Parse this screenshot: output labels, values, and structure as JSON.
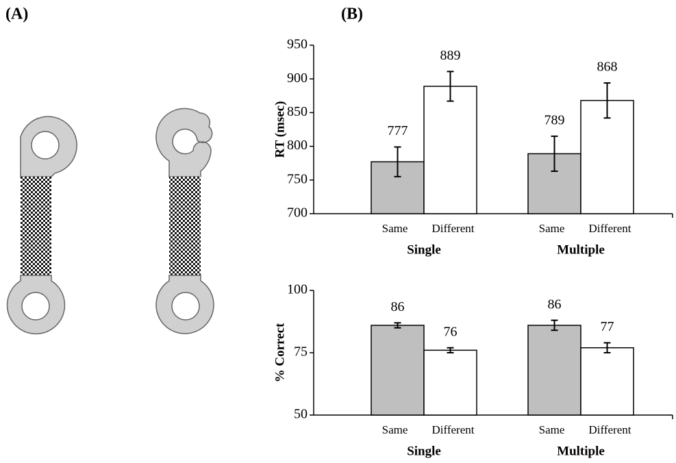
{
  "labels": [
    "(A)",
    "(B)"
  ],
  "chart_data": [
    {
      "type": "bar",
      "ylabel": "RT (msec)",
      "categories": [
        "Single",
        "Multiple"
      ],
      "series": [
        {
          "name": "Same",
          "color": "#bfbfbf",
          "values": [
            777,
            789
          ],
          "errors": [
            22,
            26
          ]
        },
        {
          "name": "Different",
          "color": "#ffffff",
          "values": [
            889,
            868
          ],
          "errors": [
            22,
            26
          ]
        }
      ],
      "ylim": [
        700,
        950
      ],
      "yticks": [
        700,
        750,
        800,
        850,
        900,
        950
      ]
    },
    {
      "type": "bar",
      "ylabel": "% Correct",
      "categories": [
        "Single",
        "Multiple"
      ],
      "series": [
        {
          "name": "Same",
          "color": "#bfbfbf",
          "values": [
            86,
            86
          ],
          "errors": [
            1,
            2
          ]
        },
        {
          "name": "Different",
          "color": "#ffffff",
          "values": [
            76,
            77
          ],
          "errors": [
            1,
            2
          ]
        }
      ],
      "ylim": [
        50,
        100
      ],
      "yticks": [
        50,
        75,
        100
      ]
    }
  ]
}
